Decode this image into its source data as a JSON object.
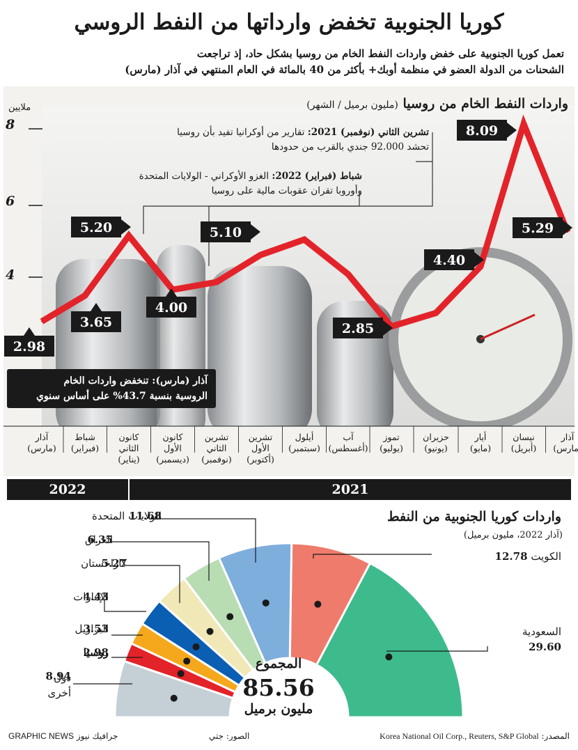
{
  "title": "كوريا الجنوبية تخفض وارداتها من النفط الروسي",
  "subtitle_line1": "تعمل كوريا الجنوبية على خفض واردات النفط الخام من روسيا بشكل حاد، إذ تراجعت",
  "subtitle_line2": "الشحنات من الدولة العضو في منظمة أوبك+ بأكثر من 40 بالمائة في العام المنتهي في آذار (مارس)",
  "chart_data": [
    {
      "type": "line",
      "title": "واردات النفط الخام من روسيا",
      "unit": "(مليون برميل / الشهر)",
      "ylabel": "ملايين",
      "ylim": [
        0,
        8
      ],
      "yticks": [
        "8",
        "6",
        "4"
      ],
      "categories": [
        [
          "آذار",
          "(مارس)"
        ],
        [
          "نيسان",
          "(أبريل)"
        ],
        [
          "أيار",
          "(مايو)"
        ],
        [
          "حزيران",
          "(يونيو)"
        ],
        [
          "تموز",
          "(يوليو)"
        ],
        [
          "آب",
          "(أغسطس)"
        ],
        [
          "أيلول",
          "(سبتمبر)"
        ],
        [
          "تشرين",
          "الأول",
          "(أكتوبر)"
        ],
        [
          "تشرين",
          "الثاني",
          "(نوفمبر)"
        ],
        [
          "كانون",
          "الأول",
          "(ديسمبر)"
        ],
        [
          "كانون",
          "الثاني",
          "(يناير)"
        ],
        [
          "شباط",
          "(فبراير)"
        ],
        [
          "آذار",
          "(مارس)"
        ]
      ],
      "x_years": [
        "2021",
        "2021",
        "2021",
        "2021",
        "2021",
        "2021",
        "2021",
        "2021",
        "2021",
        "2021",
        "2022",
        "2022",
        "2022"
      ],
      "values": [
        5.29,
        8.09,
        4.4,
        3.2,
        2.85,
        4.2,
        5.1,
        4.7,
        4.0,
        3.8,
        5.2,
        3.65,
        2.98
      ],
      "value_labels": [
        "5.29",
        "8.09",
        "4.40",
        "",
        "2.85",
        "",
        "5.10",
        "",
        "4.00",
        "",
        "5.20",
        "3.65",
        "2.98"
      ],
      "years": [
        "2022",
        "2021"
      ],
      "annotations": [
        {
          "head": "تشرين الثاني (نوفمبر) 2021:",
          "text1": " تقارير من أوكرانيا تفيد بأن روسيا",
          "text2": "تحشد 92.000 جندي بالقرب من حدودها"
        },
        {
          "head": "شباط (فبراير) 2022:",
          "text1": " الغزو الأوكراني - الولايات المتحدة",
          "text2": "وأوروبا تقران عقوبات مالية على روسيا"
        }
      ],
      "callout_line1": "آذار (مارس): تنخفض واردات الخام",
      "callout_line2": "الروسية بنسبة 43.7% على أساس سنوي"
    },
    {
      "type": "pie",
      "title": "واردات كوريا الجنوبية من النفط",
      "subtitle": "(آذار 2022، مليون برميل)",
      "total_label": "المجموع",
      "total_value": "85.56",
      "total_unit": "مليون برميل",
      "slices": [
        {
          "name": "السعودية",
          "value": 29.6,
          "label": "29.60",
          "color": "#3dbb8c"
        },
        {
          "name": "الكويت",
          "value": 12.78,
          "label": "12.78",
          "color": "#ef7b6c"
        },
        {
          "name": "الولايات المتحدة",
          "value": 11.68,
          "label": "11.68",
          "color": "#7eaedc"
        },
        {
          "name": "العراق",
          "value": 6.35,
          "label": "6.35",
          "color": "#b9ddb3"
        },
        {
          "name": "كازاخستان",
          "value": 5.27,
          "label": "5.27",
          "color": "#f1e8b8"
        },
        {
          "name": "الإمارات",
          "value": 4.43,
          "label": "4.43",
          "color": "#0a5fb3"
        },
        {
          "name": "البرازيل",
          "value": 3.53,
          "label": "3.53",
          "color": "#f5a81c"
        },
        {
          "name": "روسيا",
          "value": 2.98,
          "label": "2.98",
          "color": "#e3232a"
        },
        {
          "name": "دول أخرى",
          "name1": "دول",
          "name2": "أخرى",
          "value": 8.94,
          "label": "8.94",
          "color": "#c5cfd6"
        }
      ]
    }
  ],
  "footer": {
    "source_label": "المصدر:",
    "source": "Korea National Oil Corp., Reuters, S&P Global",
    "photo_label": "الصور:",
    "photo": "جتي",
    "brand": "GRAPHIC NEWS",
    "brand_ar": "جرافيك نيوز"
  }
}
